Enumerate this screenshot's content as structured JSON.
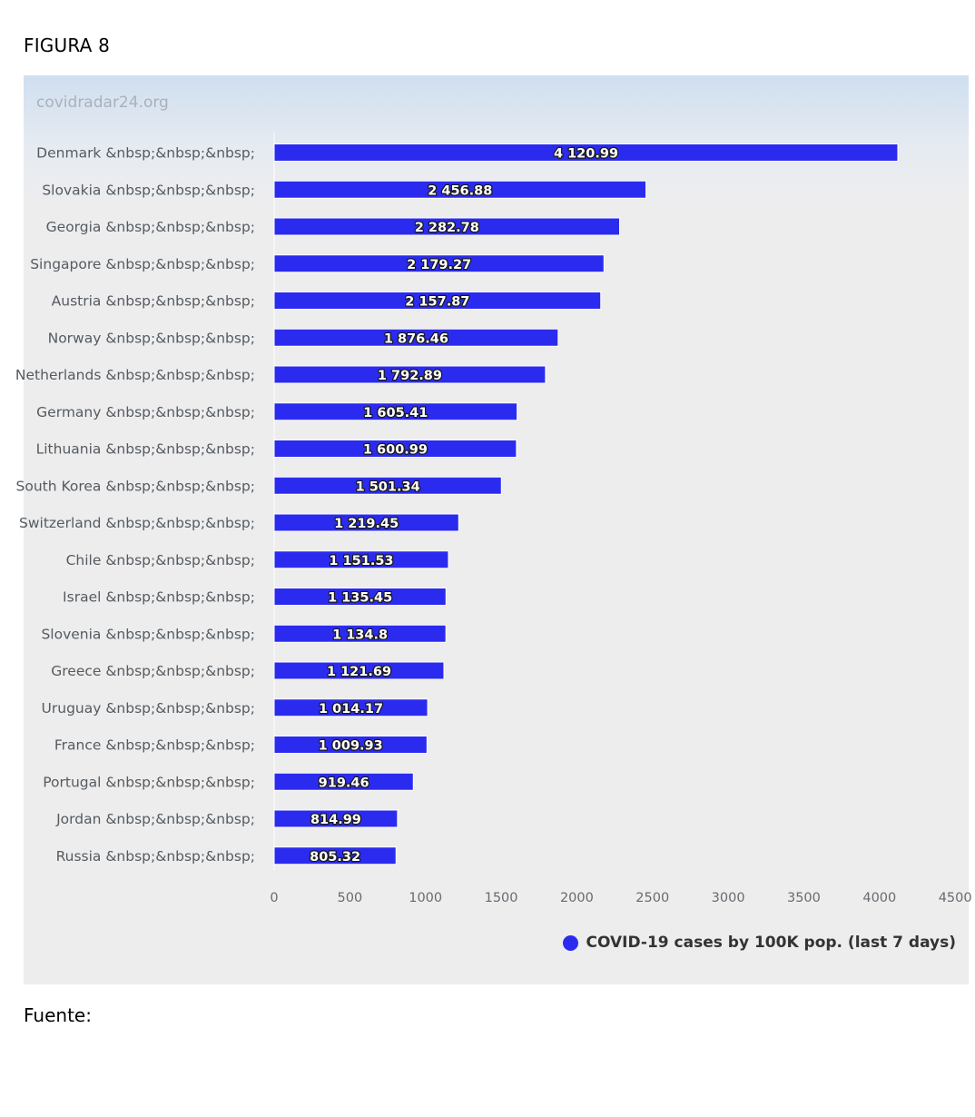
{
  "figure_label": "FIGURA 8",
  "source_label": "Fuente:",
  "watermark": "covidradar24.org",
  "chart_data": {
    "type": "bar",
    "orientation": "horizontal",
    "categories": [
      "Denmark &nbsp;&nbsp;&nbsp;",
      "Slovakia &nbsp;&nbsp;&nbsp;",
      "Georgia &nbsp;&nbsp;&nbsp;",
      "Singapore &nbsp;&nbsp;&nbsp;",
      "Austria &nbsp;&nbsp;&nbsp;",
      "Norway &nbsp;&nbsp;&nbsp;",
      "Netherlands &nbsp;&nbsp;&nbsp;",
      "Germany &nbsp;&nbsp;&nbsp;",
      "Lithuania &nbsp;&nbsp;&nbsp;",
      "South Korea &nbsp;&nbsp;&nbsp;",
      "Switzerland &nbsp;&nbsp;&nbsp;",
      "Chile &nbsp;&nbsp;&nbsp;",
      "Israel &nbsp;&nbsp;&nbsp;",
      "Slovenia &nbsp;&nbsp;&nbsp;",
      "Greece &nbsp;&nbsp;&nbsp;",
      "Uruguay &nbsp;&nbsp;&nbsp;",
      "France &nbsp;&nbsp;&nbsp;",
      "Portugal &nbsp;&nbsp;&nbsp;",
      "Jordan &nbsp;&nbsp;&nbsp;",
      "Russia &nbsp;&nbsp;&nbsp;"
    ],
    "series": [
      {
        "name": "COVID-19 cases by 100K pop. (last 7 days)",
        "color": "#2b2bf0",
        "values": [
          4120.99,
          2456.88,
          2282.78,
          2179.27,
          2157.87,
          1876.46,
          1792.89,
          1605.41,
          1600.99,
          1501.34,
          1219.45,
          1151.53,
          1135.45,
          1134.8,
          1121.69,
          1014.17,
          1009.93,
          919.46,
          814.99,
          805.32
        ],
        "value_labels": [
          "4 120.99",
          "2 456.88",
          "2 282.78",
          "2 179.27",
          "2 157.87",
          "1 876.46",
          "1 792.89",
          "1 605.41",
          "1 600.99",
          "1 501.34",
          "1 219.45",
          "1 151.53",
          "1 135.45",
          "1 134.8",
          "1 121.69",
          "1 014.17",
          "1 009.93",
          "919.46",
          "814.99",
          "805.32"
        ]
      }
    ],
    "x_ticks": [
      "0",
      "500",
      "1000",
      "1500",
      "2000",
      "2500",
      "3000",
      "3500",
      "4000",
      "4500"
    ],
    "xlim": [
      0,
      4500
    ],
    "grid": false,
    "legend_position": "bottom-right"
  }
}
